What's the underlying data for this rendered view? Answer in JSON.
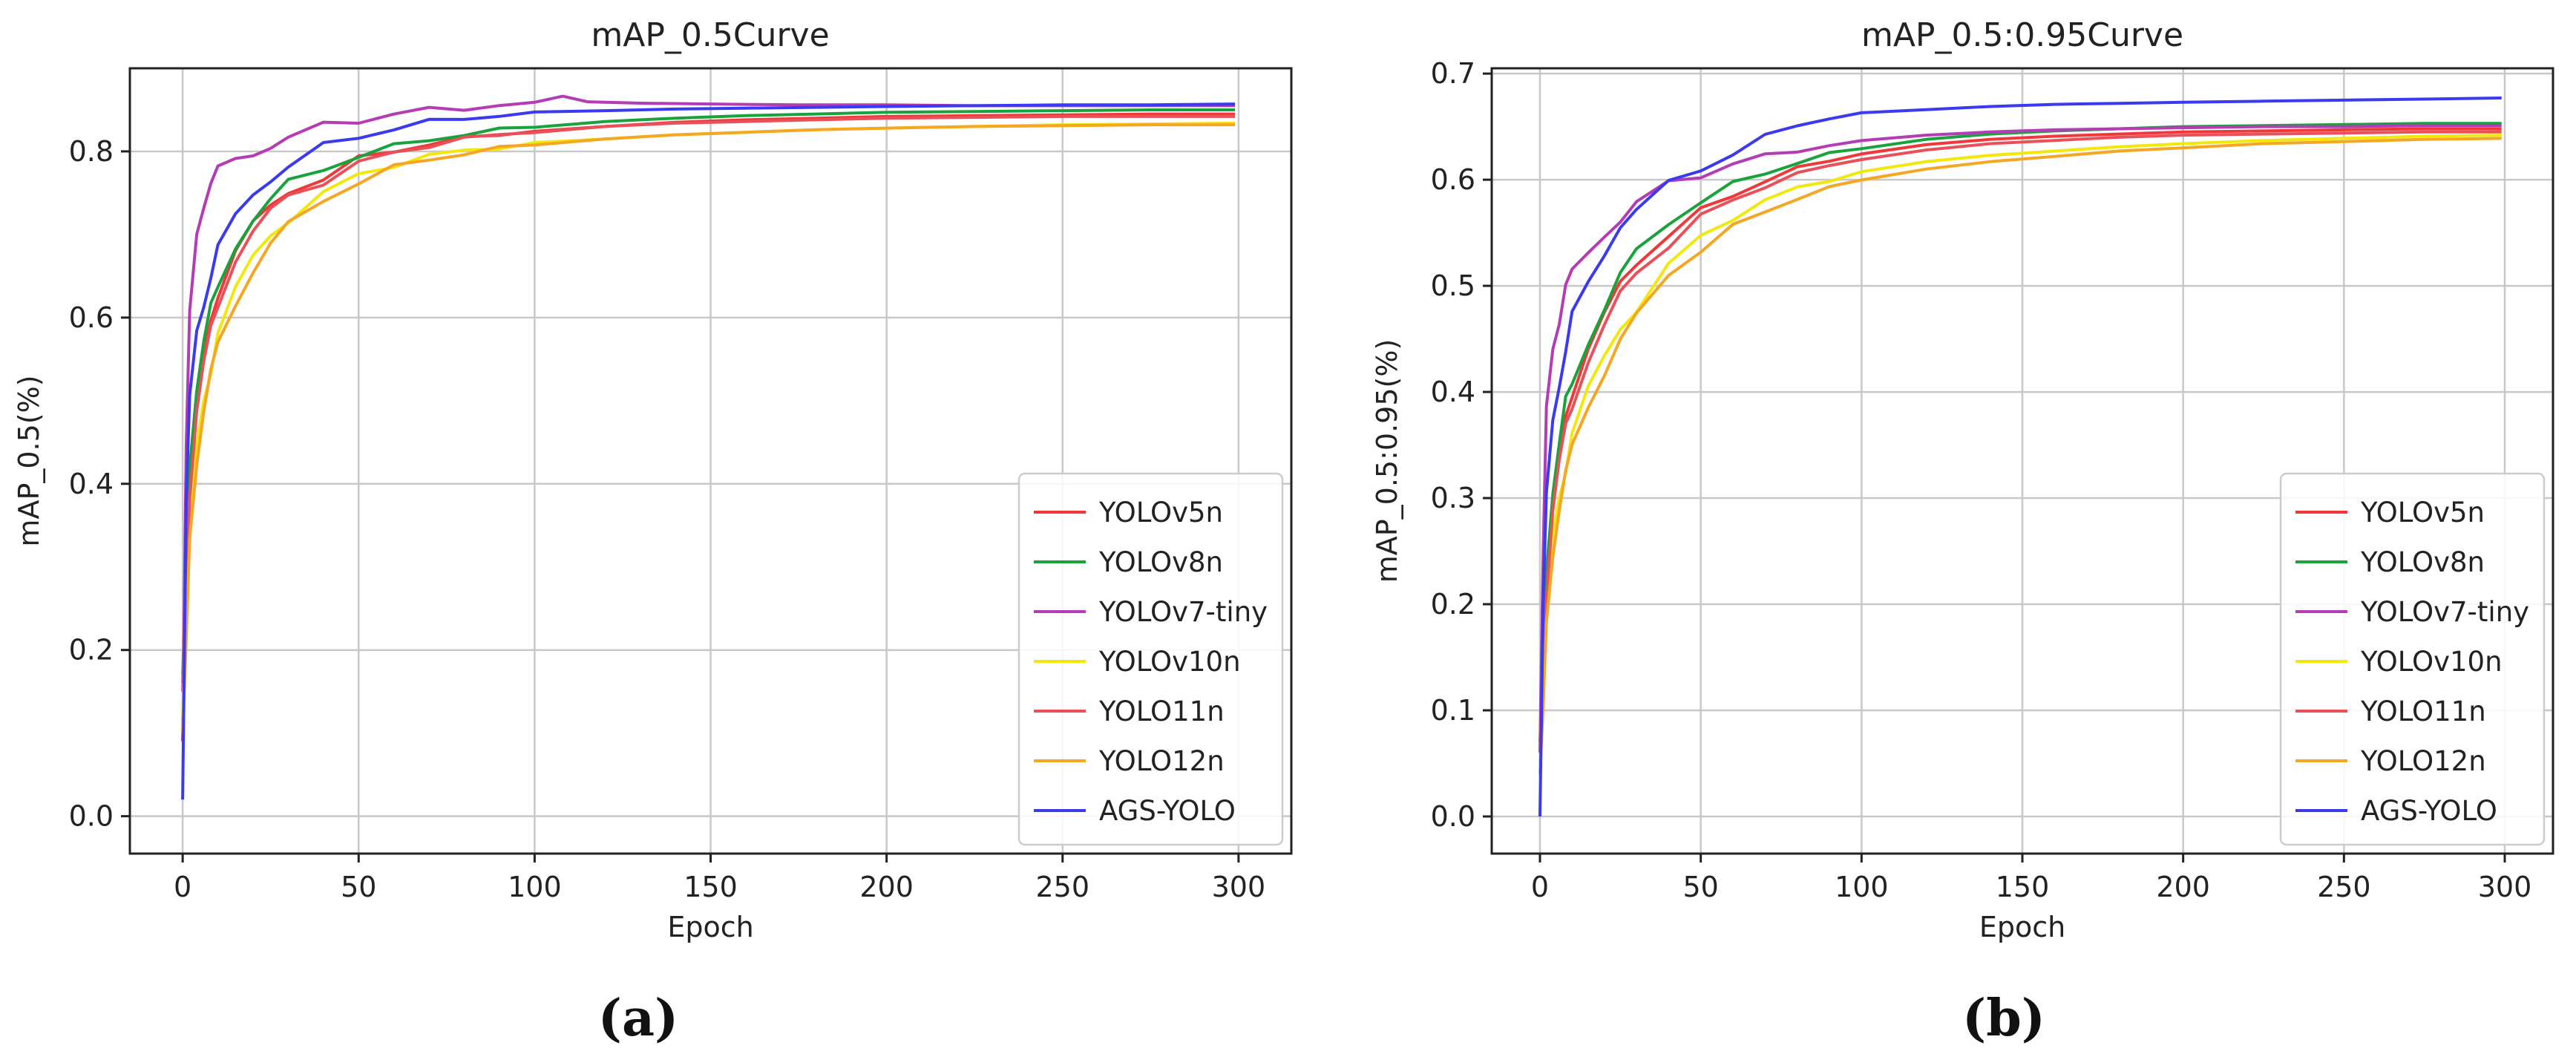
{
  "chart_data": [
    {
      "type": "line",
      "panel": "(a)",
      "title": "mAP_0.5Curve",
      "xlabel": "Epoch",
      "ylabel": "mAP_0.5(%)",
      "xlim": [
        -15,
        315
      ],
      "ylim": [
        -0.045,
        0.9
      ],
      "xticks": [
        0,
        50,
        100,
        150,
        200,
        250,
        300
      ],
      "yticks": [
        0.0,
        0.2,
        0.4,
        0.6,
        0.8
      ],
      "ytick_labels": [
        "0.0",
        "0.2",
        "0.4",
        "0.6",
        "0.8"
      ],
      "grid": true,
      "legend_position": "lower-right",
      "series": [
        {
          "name": "YOLOv5n",
          "color": "#f03838",
          "x": [
            0,
            1,
            2,
            4,
            6,
            8,
            10,
            15,
            20,
            25,
            30,
            40,
            50,
            60,
            70,
            80,
            90,
            100,
            120,
            140,
            160,
            180,
            200,
            225,
            250,
            275,
            299
          ],
          "y": [
            0.15,
            0.3,
            0.4,
            0.5,
            0.55,
            0.6,
            0.63,
            0.68,
            0.71,
            0.73,
            0.75,
            0.77,
            0.79,
            0.8,
            0.81,
            0.815,
            0.82,
            0.825,
            0.83,
            0.835,
            0.838,
            0.84,
            0.842,
            0.843,
            0.844,
            0.845,
            0.845
          ]
        },
        {
          "name": "YOLOv8n",
          "color": "#1aa33c",
          "x": [
            0,
            1,
            2,
            4,
            6,
            8,
            10,
            15,
            20,
            25,
            30,
            40,
            50,
            60,
            70,
            80,
            90,
            100,
            120,
            140,
            160,
            180,
            200,
            225,
            250,
            275,
            299
          ],
          "y": [
            0.17,
            0.3,
            0.42,
            0.52,
            0.57,
            0.61,
            0.64,
            0.69,
            0.72,
            0.74,
            0.76,
            0.78,
            0.795,
            0.805,
            0.815,
            0.82,
            0.826,
            0.83,
            0.836,
            0.84,
            0.843,
            0.845,
            0.847,
            0.848,
            0.849,
            0.85,
            0.85
          ]
        },
        {
          "name": "YOLOv7-tiny",
          "color": "#b43cb4",
          "x": [
            0,
            1,
            2,
            4,
            6,
            8,
            10,
            15,
            20,
            25,
            30,
            40,
            50,
            60,
            70,
            80,
            90,
            100,
            108,
            115,
            130,
            150,
            175,
            200,
            225,
            250,
            275,
            299
          ],
          "y": [
            0.09,
            0.45,
            0.6,
            0.7,
            0.74,
            0.76,
            0.775,
            0.79,
            0.8,
            0.81,
            0.818,
            0.83,
            0.838,
            0.845,
            0.85,
            0.852,
            0.855,
            0.858,
            0.866,
            0.86,
            0.858,
            0.857,
            0.856,
            0.856,
            0.855,
            0.855,
            0.855,
            0.855
          ]
        },
        {
          "name": "YOLOv10n",
          "color": "#f2e80c",
          "x": [
            0,
            1,
            2,
            4,
            6,
            8,
            10,
            15,
            20,
            25,
            30,
            40,
            50,
            60,
            70,
            80,
            90,
            100,
            120,
            140,
            160,
            180,
            200,
            225,
            250,
            275,
            299
          ],
          "y": [
            0.12,
            0.25,
            0.35,
            0.44,
            0.5,
            0.54,
            0.58,
            0.63,
            0.67,
            0.7,
            0.72,
            0.75,
            0.77,
            0.785,
            0.795,
            0.8,
            0.805,
            0.81,
            0.815,
            0.82,
            0.823,
            0.826,
            0.828,
            0.83,
            0.832,
            0.833,
            0.834
          ]
        },
        {
          "name": "YOLO11n",
          "color": "#e8505a",
          "x": [
            0,
            1,
            2,
            4,
            6,
            8,
            10,
            15,
            20,
            25,
            30,
            40,
            50,
            60,
            70,
            80,
            90,
            100,
            120,
            140,
            160,
            180,
            200,
            225,
            250,
            275,
            299
          ],
          "y": [
            0.16,
            0.29,
            0.39,
            0.49,
            0.54,
            0.59,
            0.62,
            0.67,
            0.7,
            0.725,
            0.745,
            0.765,
            0.785,
            0.798,
            0.808,
            0.815,
            0.82,
            0.824,
            0.83,
            0.834,
            0.836,
            0.838,
            0.84,
            0.841,
            0.842,
            0.842,
            0.842
          ]
        },
        {
          "name": "YOLO12n",
          "color": "#f5a623",
          "x": [
            0,
            1,
            2,
            4,
            6,
            8,
            10,
            15,
            20,
            25,
            30,
            40,
            50,
            60,
            70,
            80,
            90,
            100,
            120,
            140,
            160,
            180,
            200,
            225,
            250,
            275,
            299
          ],
          "y": [
            0.1,
            0.22,
            0.33,
            0.43,
            0.49,
            0.53,
            0.57,
            0.62,
            0.66,
            0.69,
            0.71,
            0.74,
            0.765,
            0.78,
            0.79,
            0.798,
            0.804,
            0.808,
            0.815,
            0.82,
            0.823,
            0.826,
            0.828,
            0.83,
            0.831,
            0.832,
            0.832
          ]
        },
        {
          "name": "AGS-YOLO",
          "color": "#3a3af0",
          "x": [
            0,
            1,
            2,
            4,
            6,
            8,
            10,
            15,
            20,
            25,
            30,
            40,
            50,
            60,
            70,
            80,
            90,
            100,
            120,
            140,
            160,
            180,
            200,
            225,
            250,
            275,
            299
          ],
          "y": [
            0.02,
            0.38,
            0.5,
            0.58,
            0.62,
            0.65,
            0.68,
            0.72,
            0.75,
            0.77,
            0.785,
            0.805,
            0.818,
            0.828,
            0.835,
            0.84,
            0.843,
            0.846,
            0.849,
            0.851,
            0.852,
            0.853,
            0.854,
            0.855,
            0.856,
            0.856,
            0.857
          ]
        }
      ]
    },
    {
      "type": "line",
      "panel": "(b)",
      "title": "mAP_0.5:0.95Curve",
      "xlabel": "Epoch",
      "ylabel": "mAP_0.5:0.95(%)",
      "xlim": [
        -15,
        315
      ],
      "ylim": [
        -0.035,
        0.705
      ],
      "xticks": [
        0,
        50,
        100,
        150,
        200,
        250,
        300
      ],
      "yticks": [
        0.0,
        0.1,
        0.2,
        0.3,
        0.4,
        0.5,
        0.6,
        0.7
      ],
      "ytick_labels": [
        "0.0",
        "0.1",
        "0.2",
        "0.3",
        "0.4",
        "0.5",
        "0.6",
        "0.7"
      ],
      "grid": true,
      "legend_position": "lower-right",
      "series": [
        {
          "name": "YOLOv5n",
          "color": "#f03838",
          "x": [
            0,
            1,
            2,
            4,
            6,
            8,
            10,
            15,
            20,
            25,
            30,
            40,
            50,
            60,
            70,
            80,
            90,
            100,
            120,
            140,
            160,
            180,
            200,
            225,
            250,
            275,
            299
          ],
          "y": [
            0.06,
            0.15,
            0.22,
            0.3,
            0.34,
            0.38,
            0.4,
            0.44,
            0.47,
            0.5,
            0.52,
            0.55,
            0.57,
            0.585,
            0.6,
            0.61,
            0.618,
            0.625,
            0.633,
            0.638,
            0.641,
            0.643,
            0.645,
            0.646,
            0.647,
            0.648,
            0.648
          ]
        },
        {
          "name": "YOLOv8n",
          "color": "#1aa33c",
          "x": [
            0,
            1,
            2,
            4,
            6,
            8,
            10,
            15,
            20,
            25,
            30,
            40,
            50,
            60,
            70,
            80,
            90,
            100,
            120,
            140,
            160,
            180,
            200,
            225,
            250,
            275,
            299
          ],
          "y": [
            0.07,
            0.16,
            0.23,
            0.31,
            0.35,
            0.39,
            0.41,
            0.45,
            0.48,
            0.51,
            0.53,
            0.56,
            0.58,
            0.595,
            0.607,
            0.616,
            0.624,
            0.63,
            0.638,
            0.643,
            0.646,
            0.648,
            0.65,
            0.651,
            0.652,
            0.653,
            0.653
          ]
        },
        {
          "name": "YOLOv7-tiny",
          "color": "#b43cb4",
          "x": [
            0,
            1,
            2,
            4,
            6,
            8,
            10,
            15,
            20,
            25,
            30,
            40,
            50,
            60,
            70,
            80,
            90,
            100,
            110,
            120,
            140,
            160,
            180,
            200,
            225,
            250,
            275,
            299
          ],
          "y": [
            0.06,
            0.25,
            0.38,
            0.44,
            0.47,
            0.5,
            0.51,
            0.53,
            0.55,
            0.565,
            0.58,
            0.595,
            0.605,
            0.615,
            0.622,
            0.628,
            0.632,
            0.636,
            0.64,
            0.642,
            0.645,
            0.647,
            0.648,
            0.649,
            0.65,
            0.65,
            0.651,
            0.651
          ]
        },
        {
          "name": "YOLOv10n",
          "color": "#f2e80c",
          "x": [
            0,
            1,
            2,
            4,
            6,
            8,
            10,
            15,
            20,
            25,
            30,
            40,
            50,
            60,
            70,
            80,
            90,
            100,
            120,
            140,
            160,
            180,
            200,
            225,
            250,
            275,
            299
          ],
          "y": [
            0.05,
            0.12,
            0.19,
            0.26,
            0.3,
            0.33,
            0.36,
            0.4,
            0.43,
            0.46,
            0.48,
            0.52,
            0.545,
            0.565,
            0.58,
            0.592,
            0.6,
            0.607,
            0.617,
            0.623,
            0.627,
            0.631,
            0.634,
            0.637,
            0.639,
            0.641,
            0.642
          ]
        },
        {
          "name": "YOLO11n",
          "color": "#e8505a",
          "x": [
            0,
            1,
            2,
            4,
            6,
            8,
            10,
            15,
            20,
            25,
            30,
            40,
            50,
            60,
            70,
            80,
            90,
            100,
            120,
            140,
            160,
            180,
            200,
            225,
            250,
            275,
            299
          ],
          "y": [
            0.06,
            0.14,
            0.21,
            0.29,
            0.33,
            0.37,
            0.39,
            0.43,
            0.46,
            0.49,
            0.51,
            0.54,
            0.565,
            0.58,
            0.595,
            0.605,
            0.613,
            0.62,
            0.628,
            0.634,
            0.637,
            0.64,
            0.642,
            0.643,
            0.644,
            0.645,
            0.645
          ]
        },
        {
          "name": "YOLO12n",
          "color": "#f5a623",
          "x": [
            0,
            1,
            2,
            4,
            6,
            8,
            10,
            15,
            20,
            25,
            30,
            40,
            50,
            60,
            70,
            80,
            90,
            100,
            120,
            140,
            160,
            180,
            200,
            225,
            250,
            275,
            299
          ],
          "y": [
            0.04,
            0.11,
            0.18,
            0.25,
            0.29,
            0.32,
            0.35,
            0.39,
            0.42,
            0.45,
            0.47,
            0.51,
            0.535,
            0.555,
            0.57,
            0.583,
            0.592,
            0.6,
            0.61,
            0.617,
            0.622,
            0.627,
            0.63,
            0.634,
            0.636,
            0.638,
            0.639
          ]
        },
        {
          "name": "AGS-YOLO",
          "color": "#3a3af0",
          "x": [
            0,
            1,
            2,
            4,
            6,
            8,
            10,
            15,
            20,
            25,
            30,
            40,
            50,
            60,
            70,
            80,
            90,
            100,
            120,
            140,
            160,
            180,
            200,
            225,
            250,
            275,
            299
          ],
          "y": [
            0.0,
            0.2,
            0.3,
            0.37,
            0.41,
            0.44,
            0.47,
            0.5,
            0.53,
            0.56,
            0.575,
            0.595,
            0.61,
            0.625,
            0.64,
            0.652,
            0.658,
            0.662,
            0.666,
            0.669,
            0.671,
            0.672,
            0.673,
            0.674,
            0.675,
            0.676,
            0.677
          ]
        }
      ]
    }
  ]
}
